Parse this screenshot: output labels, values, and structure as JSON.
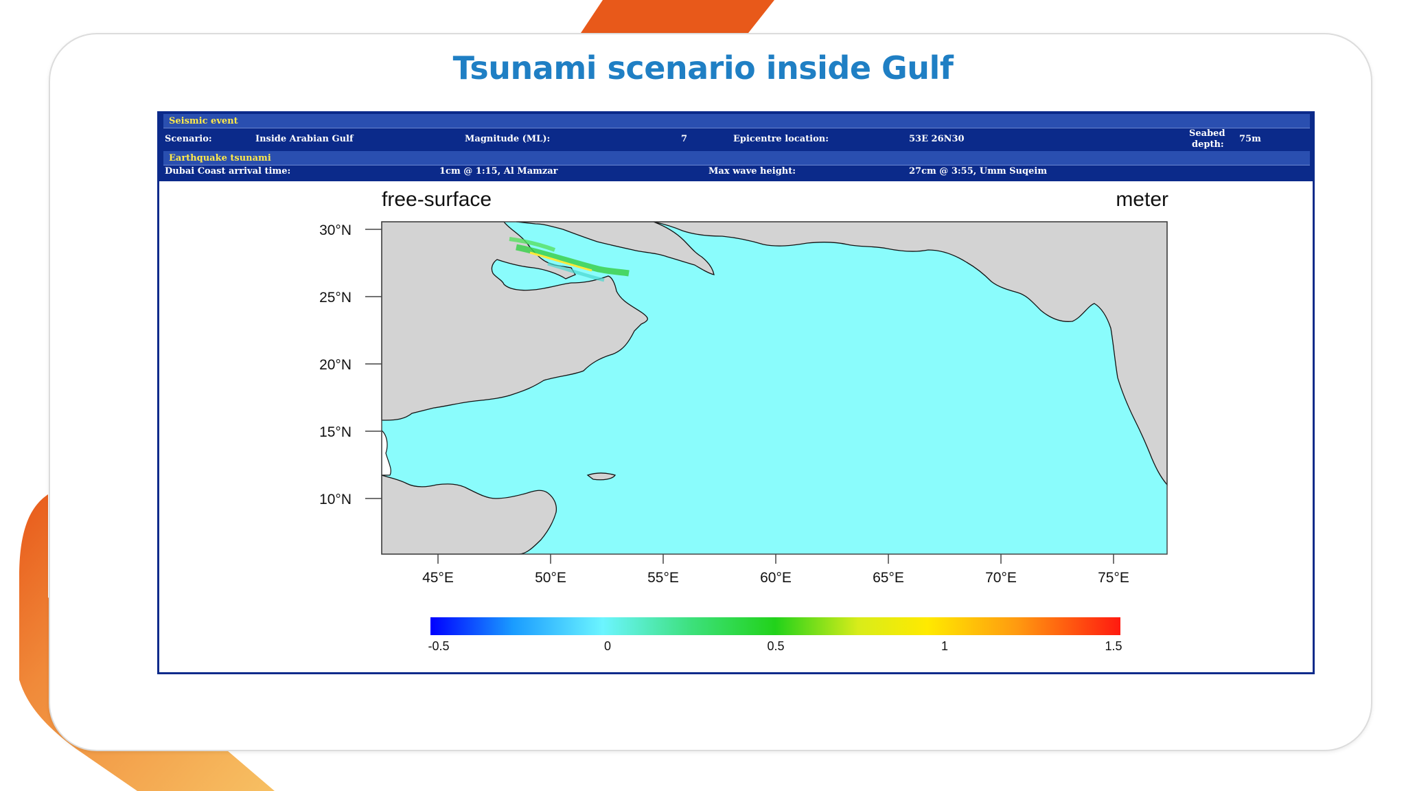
{
  "slide": {
    "title": "Tsunami scenario inside Gulf"
  },
  "info": {
    "seismic_header": "Seismic event",
    "scenario_label": "Scenario:",
    "scenario_value": "Inside Arabian Gulf",
    "magnitude_label": "Magnitude (ML):",
    "magnitude_value": "7",
    "epicentre_label": "Epicentre location:",
    "epicentre_value": "53E 26N30",
    "depth_label_1": "Seabed",
    "depth_label_2": "depth:",
    "depth_value": "75m",
    "tsunami_header": "Earthquake tsunami",
    "arrival_label": "Dubai Coast arrival time:",
    "arrival_value": "1cm @ 1:15, Al Mamzar",
    "maxwave_label": "Max wave height:",
    "maxwave_value": "27cm @ 3:55, Umm Suqeim"
  },
  "map": {
    "title_left": "free-surface",
    "title_right": "meter",
    "lat_labels": [
      "30°N",
      "25°N",
      "20°N",
      "15°N",
      "10°N"
    ],
    "lon_labels": [
      "45°E",
      "50°E",
      "55°E",
      "60°E",
      "65°E",
      "70°E",
      "75°E"
    ],
    "colorbar_labels": [
      "-0.5",
      "0",
      "0.5",
      "1",
      "1.5"
    ],
    "colors": {
      "sea": "#8afcfc",
      "land": "#d3d3d3",
      "frame": "#444444"
    }
  },
  "decor": {
    "accent": "#e8591a",
    "accent_light": "#f5b255"
  }
}
